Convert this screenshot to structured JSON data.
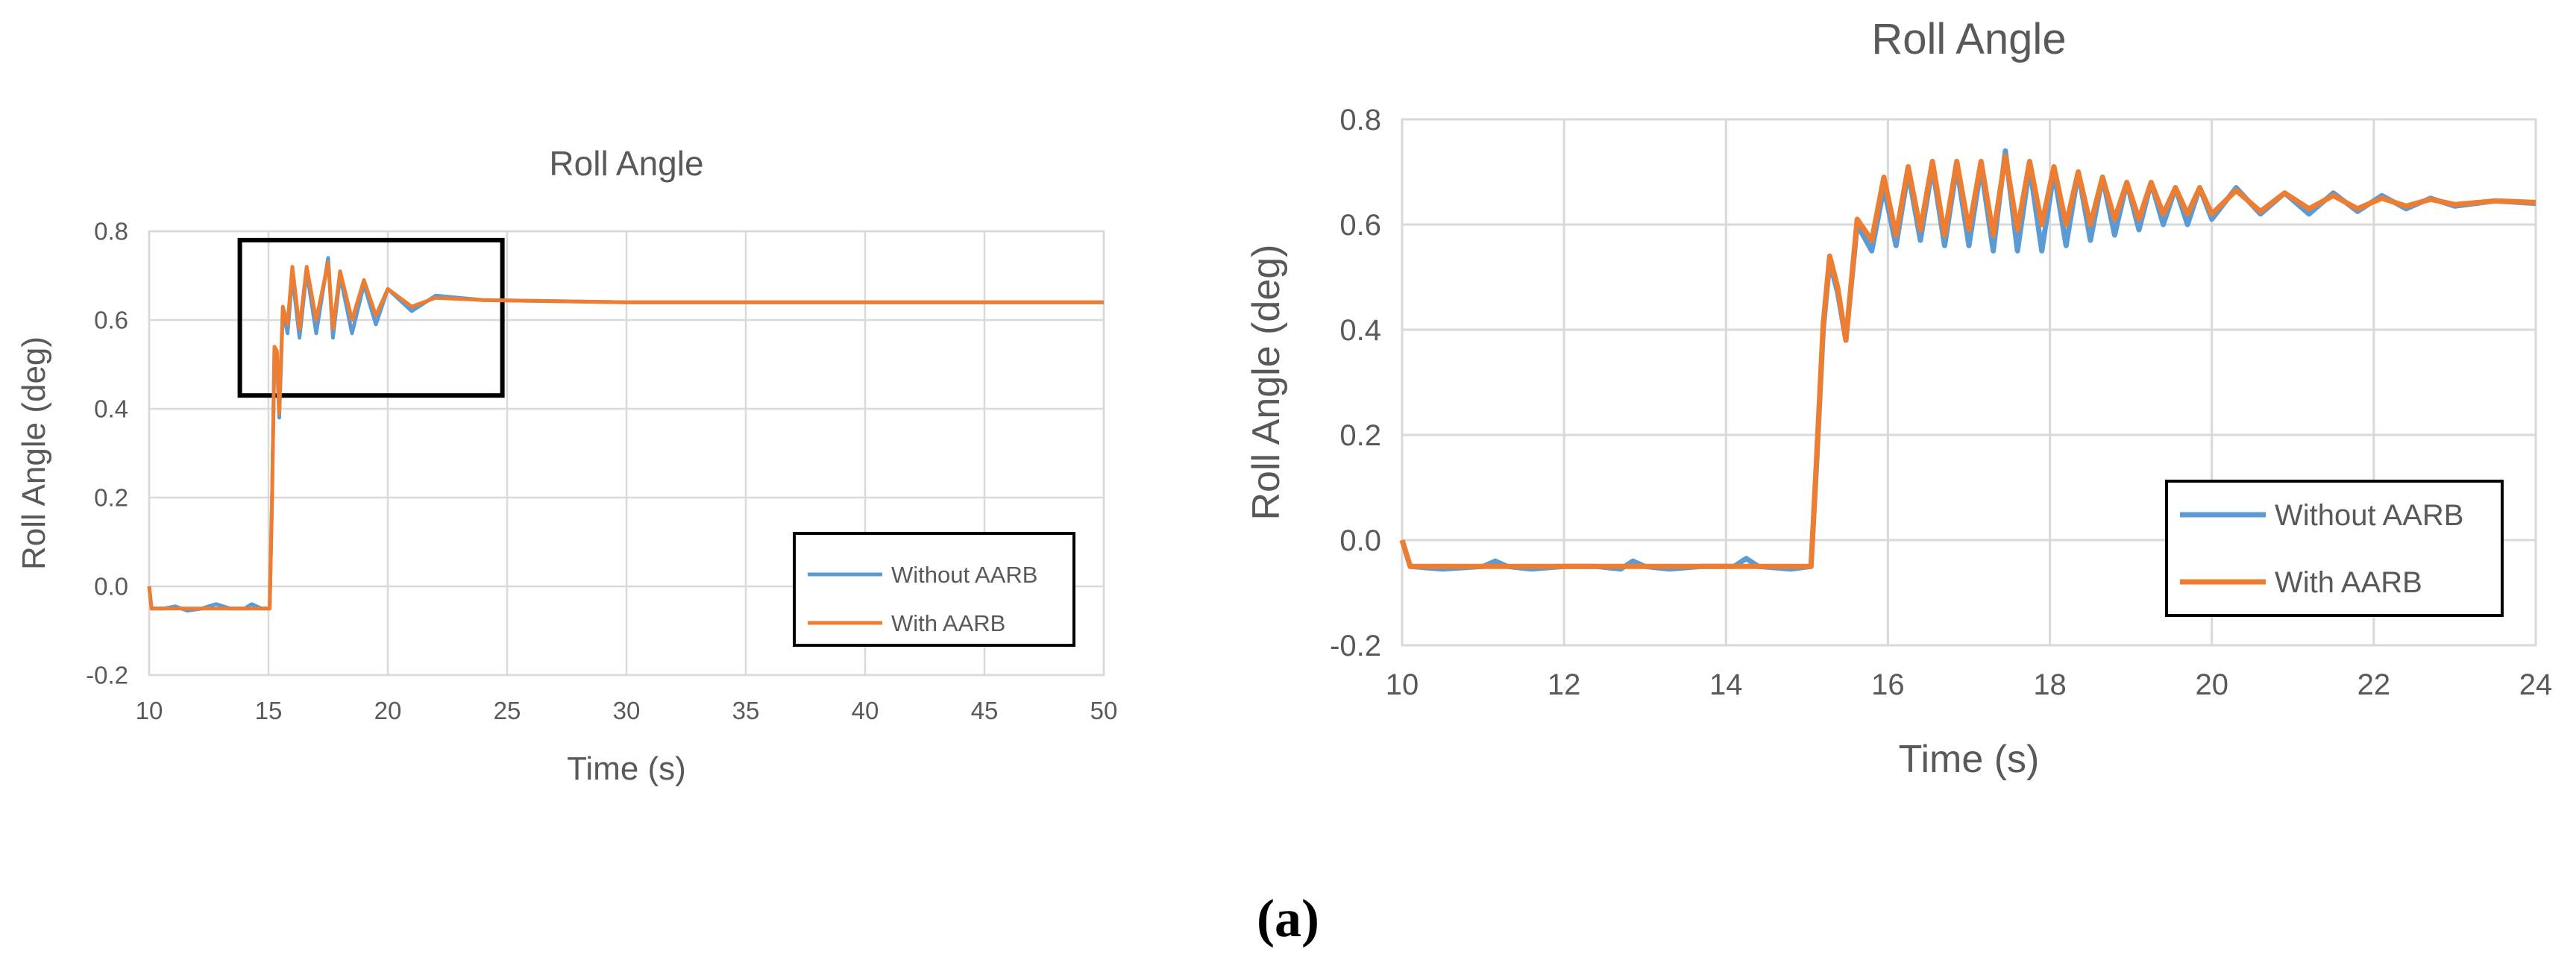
{
  "caption": "(a)",
  "colors": {
    "without": "#5b9bd5",
    "with": "#ed7d31",
    "grid": "#d9d9d9",
    "text": "#595959",
    "box": "#000000"
  },
  "chart_data": [
    {
      "type": "line",
      "title": "Roll Angle",
      "xlabel": "Time (s)",
      "ylabel": "Roll Angle (deg)",
      "xlim": [
        10,
        50
      ],
      "ylim": [
        -0.2,
        0.8
      ],
      "xticks": [
        10,
        15,
        20,
        25,
        30,
        35,
        40,
        45,
        50
      ],
      "xtick_labels": [
        "10",
        "15",
        "20",
        "25",
        "30",
        "35",
        "40",
        "45",
        "50"
      ],
      "yticks": [
        -0.2,
        0.0,
        0.2,
        0.4,
        0.6,
        0.8
      ],
      "ytick_labels": [
        "-0.2",
        "0.0",
        "0.2",
        "0.4",
        "0.6",
        "0.8"
      ],
      "grid": true,
      "legend_position": "bottom-right",
      "annotation": {
        "type": "zoom-box",
        "x_range": [
          13.8,
          24.8
        ],
        "y_range": [
          0.43,
          0.78
        ]
      },
      "series": [
        {
          "name": "Without AARB",
          "x": [
            10.0,
            10.1,
            10.6,
            11.1,
            11.6,
            12.2,
            12.8,
            13.4,
            14.0,
            14.3,
            14.7,
            15.05,
            15.15,
            15.25,
            15.35,
            15.45,
            15.6,
            15.8,
            16.0,
            16.3,
            16.6,
            17.0,
            17.5,
            17.7,
            18.0,
            18.5,
            19.0,
            19.5,
            20.0,
            21.0,
            22.0,
            24.0,
            30.0,
            40.0,
            50.0
          ],
          "y": [
            0.0,
            -0.05,
            -0.05,
            -0.045,
            -0.055,
            -0.05,
            -0.04,
            -0.05,
            -0.05,
            -0.04,
            -0.05,
            -0.05,
            0.2,
            0.53,
            0.52,
            0.38,
            0.62,
            0.57,
            0.7,
            0.56,
            0.71,
            0.57,
            0.74,
            0.56,
            0.7,
            0.57,
            0.68,
            0.59,
            0.67,
            0.62,
            0.655,
            0.645,
            0.64,
            0.64,
            0.64
          ]
        },
        {
          "name": "With AARB",
          "x": [
            10.0,
            10.1,
            10.6,
            11.1,
            11.6,
            12.2,
            12.8,
            13.4,
            14.0,
            14.3,
            14.7,
            15.05,
            15.15,
            15.25,
            15.35,
            15.45,
            15.6,
            15.8,
            16.0,
            16.3,
            16.6,
            17.0,
            17.5,
            17.7,
            18.0,
            18.5,
            19.0,
            19.5,
            20.0,
            21.0,
            22.0,
            24.0,
            30.0,
            40.0,
            50.0
          ],
          "y": [
            0.0,
            -0.05,
            -0.05,
            -0.05,
            -0.05,
            -0.05,
            -0.05,
            -0.05,
            -0.05,
            -0.05,
            -0.05,
            -0.05,
            0.2,
            0.54,
            0.53,
            0.39,
            0.63,
            0.59,
            0.72,
            0.58,
            0.72,
            0.6,
            0.73,
            0.58,
            0.71,
            0.6,
            0.69,
            0.61,
            0.67,
            0.63,
            0.65,
            0.645,
            0.64,
            0.64,
            0.64
          ]
        }
      ]
    },
    {
      "type": "line",
      "title": "Roll Angle",
      "xlabel": "Time (s)",
      "ylabel": "Roll Angle (deg)",
      "xlim": [
        10,
        24
      ],
      "ylim": [
        -0.2,
        0.8
      ],
      "xticks": [
        10,
        12,
        14,
        16,
        18,
        20,
        22,
        24
      ],
      "xtick_labels": [
        "10",
        "12",
        "14",
        "16",
        "18",
        "20",
        "22",
        "24"
      ],
      "yticks": [
        -0.2,
        0.0,
        0.2,
        0.4,
        0.6,
        0.8
      ],
      "ytick_labels": [
        "-0.2",
        "0.0",
        "0.2",
        "0.4",
        "0.6",
        "0.8"
      ],
      "grid": true,
      "legend_position": "bottom-right",
      "series": [
        {
          "name": "Without AARB",
          "x": [
            10.0,
            10.1,
            10.5,
            11.0,
            11.15,
            11.3,
            11.6,
            12.0,
            12.4,
            12.7,
            12.85,
            13.0,
            13.3,
            13.7,
            14.1,
            14.25,
            14.4,
            14.8,
            15.05,
            15.12,
            15.2,
            15.28,
            15.38,
            15.48,
            15.62,
            15.8,
            15.95,
            16.1,
            16.25,
            16.4,
            16.55,
            16.7,
            16.85,
            17.0,
            17.15,
            17.3,
            17.45,
            17.6,
            17.75,
            17.9,
            18.05,
            18.2,
            18.35,
            18.5,
            18.65,
            18.8,
            18.95,
            19.1,
            19.25,
            19.4,
            19.55,
            19.7,
            19.85,
            20.0,
            20.3,
            20.6,
            20.9,
            21.2,
            21.5,
            21.8,
            22.1,
            22.4,
            22.7,
            23.0,
            23.5,
            24.0
          ],
          "y": [
            0.0,
            -0.05,
            -0.055,
            -0.05,
            -0.04,
            -0.05,
            -0.055,
            -0.05,
            -0.05,
            -0.055,
            -0.04,
            -0.05,
            -0.055,
            -0.05,
            -0.05,
            -0.035,
            -0.05,
            -0.055,
            -0.05,
            0.15,
            0.4,
            0.53,
            0.47,
            0.38,
            0.6,
            0.55,
            0.67,
            0.56,
            0.7,
            0.57,
            0.71,
            0.56,
            0.71,
            0.56,
            0.71,
            0.55,
            0.74,
            0.55,
            0.71,
            0.55,
            0.7,
            0.56,
            0.7,
            0.57,
            0.69,
            0.58,
            0.68,
            0.59,
            0.68,
            0.6,
            0.67,
            0.6,
            0.67,
            0.61,
            0.67,
            0.62,
            0.66,
            0.62,
            0.66,
            0.625,
            0.655,
            0.63,
            0.65,
            0.635,
            0.645,
            0.64
          ]
        },
        {
          "name": "With AARB",
          "x": [
            10.0,
            10.1,
            10.5,
            11.0,
            11.15,
            11.3,
            11.6,
            12.0,
            12.4,
            12.7,
            12.85,
            13.0,
            13.3,
            13.7,
            14.1,
            14.25,
            14.4,
            14.8,
            15.05,
            15.12,
            15.2,
            15.28,
            15.38,
            15.48,
            15.62,
            15.8,
            15.95,
            16.1,
            16.25,
            16.4,
            16.55,
            16.7,
            16.85,
            17.0,
            17.15,
            17.3,
            17.45,
            17.6,
            17.75,
            17.9,
            18.05,
            18.2,
            18.35,
            18.5,
            18.65,
            18.8,
            18.95,
            19.1,
            19.25,
            19.4,
            19.55,
            19.7,
            19.85,
            20.0,
            20.3,
            20.6,
            20.9,
            21.2,
            21.5,
            21.8,
            22.1,
            22.4,
            22.7,
            23.0,
            23.5,
            24.0
          ],
          "y": [
            0.0,
            -0.05,
            -0.05,
            -0.05,
            -0.05,
            -0.05,
            -0.05,
            -0.05,
            -0.05,
            -0.05,
            -0.05,
            -0.05,
            -0.05,
            -0.05,
            -0.05,
            -0.05,
            -0.05,
            -0.05,
            -0.05,
            0.16,
            0.41,
            0.54,
            0.48,
            0.38,
            0.61,
            0.57,
            0.69,
            0.58,
            0.71,
            0.59,
            0.72,
            0.58,
            0.72,
            0.59,
            0.72,
            0.58,
            0.73,
            0.59,
            0.72,
            0.6,
            0.71,
            0.6,
            0.7,
            0.6,
            0.69,
            0.61,
            0.68,
            0.61,
            0.68,
            0.62,
            0.67,
            0.62,
            0.67,
            0.62,
            0.665,
            0.625,
            0.66,
            0.63,
            0.655,
            0.63,
            0.65,
            0.635,
            0.648,
            0.638,
            0.645,
            0.642
          ]
        }
      ]
    }
  ]
}
